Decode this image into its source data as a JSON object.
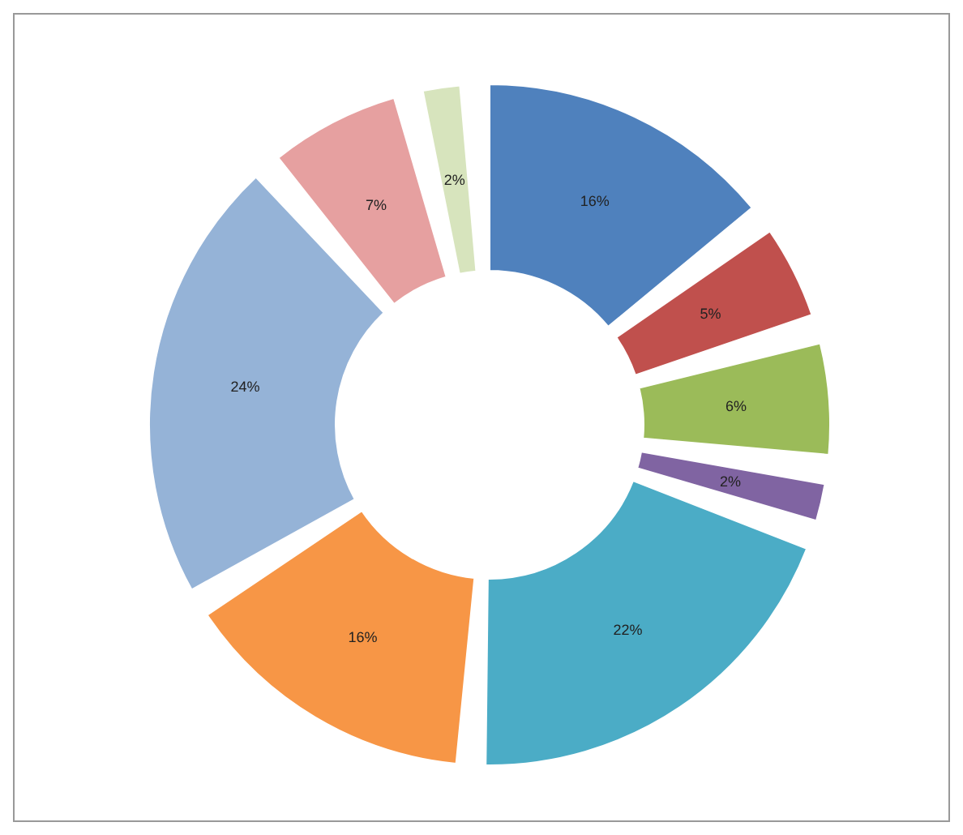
{
  "chart_data": {
    "type": "donut",
    "categories": [
      null,
      null,
      null,
      null,
      null,
      null,
      null,
      null,
      null
    ],
    "values": [
      16,
      5,
      6,
      2,
      22,
      16,
      24,
      7,
      2
    ],
    "colors": [
      "#4f81bd",
      "#c0504d",
      "#9bbb59",
      "#8064a2",
      "#4bacc6",
      "#f79646",
      "#95b3d7",
      "#e6a0a0",
      "#d7e4bd"
    ],
    "value_labels": [
      "16%",
      "5%",
      "6%",
      "2%",
      "22%",
      "16%",
      "24%",
      "7%",
      "2%"
    ],
    "legend": false
  }
}
